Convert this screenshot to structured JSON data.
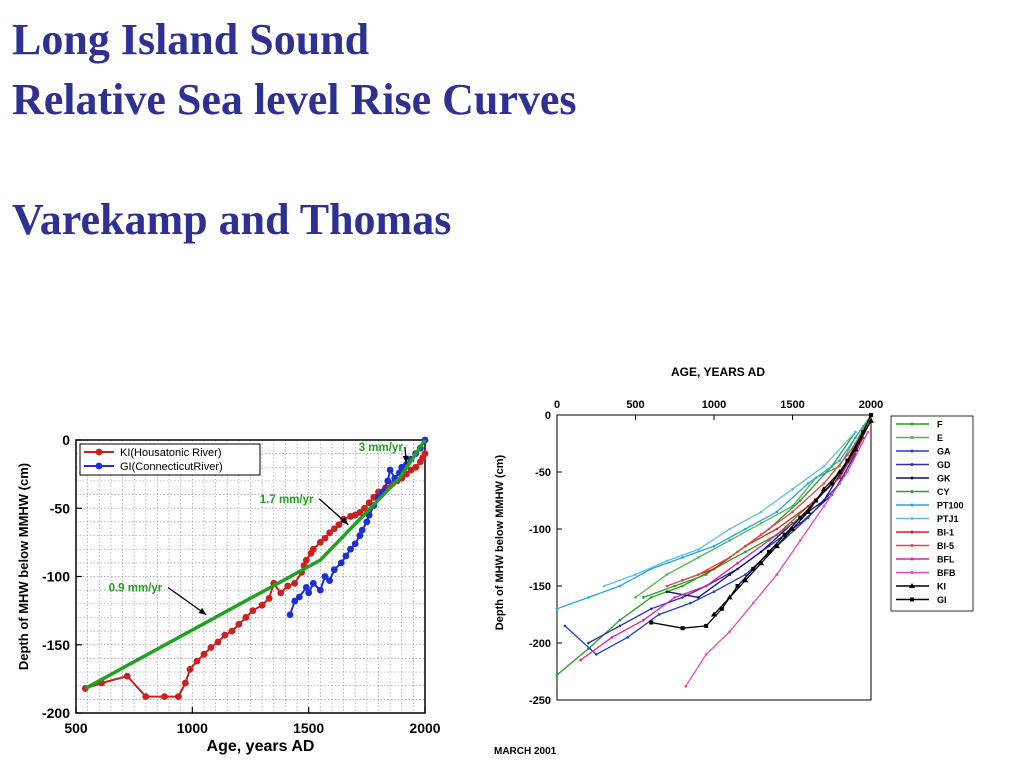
{
  "header": {
    "line1": "Long Island Sound",
    "line2": "Relative Sea level Rise Curves",
    "line3": "Varekamp and Thomas"
  },
  "footnote": "MARCH 2001",
  "chart_data": [
    {
      "type": "line",
      "xlabel": "Age, years AD",
      "ylabel": "Depth of MHW below MMHW (cm)",
      "xlim": [
        500,
        2000
      ],
      "ylim": [
        -200,
        0
      ],
      "xticks": [
        "500",
        "1000",
        "1500",
        "2000"
      ],
      "yticks": [
        "0",
        "-50",
        "-100",
        "-150",
        "-200"
      ],
      "grid": true,
      "legend_position": "top-left",
      "series": [
        {
          "name": "KI(Housatonic  River)",
          "color": "#cc1f1f",
          "marker": "circle",
          "points": [
            [
              540,
              -182
            ],
            [
              610,
              -178
            ],
            [
              720,
              -173
            ],
            [
              800,
              -188
            ],
            [
              880,
              -188
            ],
            [
              940,
              -188
            ],
            [
              970,
              -178
            ],
            [
              990,
              -168
            ],
            [
              1020,
              -162
            ],
            [
              1050,
              -157
            ],
            [
              1080,
              -152
            ],
            [
              1110,
              -148
            ],
            [
              1140,
              -143
            ],
            [
              1170,
              -140
            ],
            [
              1200,
              -135
            ],
            [
              1230,
              -130
            ],
            [
              1260,
              -125
            ],
            [
              1300,
              -121
            ],
            [
              1330,
              -116
            ],
            [
              1350,
              -105
            ],
            [
              1380,
              -112
            ],
            [
              1410,
              -107
            ],
            [
              1440,
              -105
            ],
            [
              1470,
              -97
            ],
            [
              1480,
              -92
            ],
            [
              1490,
              -88
            ],
            [
              1510,
              -83
            ],
            [
              1520,
              -80
            ],
            [
              1550,
              -75
            ],
            [
              1570,
              -72
            ],
            [
              1590,
              -68
            ],
            [
              1610,
              -65
            ],
            [
              1630,
              -62
            ],
            [
              1650,
              -58
            ],
            [
              1680,
              -56
            ],
            [
              1700,
              -55
            ],
            [
              1720,
              -53
            ],
            [
              1740,
              -50
            ],
            [
              1760,
              -46
            ],
            [
              1780,
              -42
            ],
            [
              1800,
              -38
            ],
            [
              1830,
              -35
            ],
            [
              1860,
              -32
            ],
            [
              1880,
              -30
            ],
            [
              1900,
              -28
            ],
            [
              1920,
              -25
            ],
            [
              1940,
              -22
            ],
            [
              1960,
              -20
            ],
            [
              1980,
              -16
            ],
            [
              1990,
              -13
            ],
            [
              2000,
              -10
            ]
          ]
        },
        {
          "name": "GI(ConnecticutRiver)",
          "color": "#1c2fd6",
          "marker": "circle",
          "points": [
            [
              1420,
              -128
            ],
            [
              1440,
              -118
            ],
            [
              1460,
              -115
            ],
            [
              1490,
              -108
            ],
            [
              1500,
              -112
            ],
            [
              1520,
              -105
            ],
            [
              1550,
              -110
            ],
            [
              1570,
              -100
            ],
            [
              1590,
              -103
            ],
            [
              1610,
              -95
            ],
            [
              1640,
              -90
            ],
            [
              1660,
              -85
            ],
            [
              1680,
              -80
            ],
            [
              1700,
              -76
            ],
            [
              1720,
              -70
            ],
            [
              1730,
              -66
            ],
            [
              1750,
              -60
            ],
            [
              1760,
              -55
            ],
            [
              1780,
              -48
            ],
            [
              1800,
              -42
            ],
            [
              1820,
              -38
            ],
            [
              1840,
              -30
            ],
            [
              1850,
              -22
            ],
            [
              1870,
              -28
            ],
            [
              1890,
              -24
            ],
            [
              1900,
              -20
            ],
            [
              1920,
              -18
            ],
            [
              1940,
              -14
            ],
            [
              1960,
              -10
            ],
            [
              1980,
              -6
            ],
            [
              2000,
              0
            ]
          ]
        }
      ],
      "trend_line": {
        "color": "#1fa21f",
        "points": [
          [
            540,
            -182
          ],
          [
            1550,
            -88
          ],
          [
            1890,
            -28
          ],
          [
            2000,
            0
          ]
        ]
      },
      "annotations": [
        {
          "text": "3 mm/yr",
          "x": 1715,
          "y": -8,
          "arrow_to": [
            1920,
            -17
          ]
        },
        {
          "text": "1.7 mm/yr",
          "x": 1290,
          "y": -46,
          "arrow_to": [
            1670,
            -62
          ]
        },
        {
          "text": "0.9 mm/yr",
          "x": 640,
          "y": -111,
          "arrow_to": [
            1060,
            -128
          ]
        }
      ]
    },
    {
      "type": "line",
      "xlabel": "AGE, YEARS AD",
      "ylabel": "Depth of MHW below MMHW (cm)",
      "xlim": [
        0,
        2000
      ],
      "ylim": [
        -250,
        0
      ],
      "xticks": [
        "0",
        "500",
        "1000",
        "1500",
        "2000"
      ],
      "yticks": [
        "0",
        "-50",
        "-100",
        "-150",
        "-200",
        "-250"
      ],
      "grid": false,
      "legend_position": "right",
      "series": [
        {
          "name": "F",
          "color": "#1fa21f",
          "marker": "dot",
          "points": [
            [
              0,
              -228
            ],
            [
              200,
              -205
            ],
            [
              400,
              -180
            ],
            [
              600,
              -160
            ],
            [
              800,
              -150
            ],
            [
              1000,
              -135
            ],
            [
              1200,
              -120
            ],
            [
              1400,
              -105
            ],
            [
              1600,
              -80
            ],
            [
              1800,
              -55
            ],
            [
              1900,
              -25
            ],
            [
              2000,
              0
            ]
          ]
        },
        {
          "name": "E",
          "color": "#4db84d",
          "marker": "dot",
          "points": [
            [
              500,
              -160
            ],
            [
              700,
              -140
            ],
            [
              900,
              -125
            ],
            [
              1100,
              -110
            ],
            [
              1300,
              -95
            ],
            [
              1500,
              -80
            ],
            [
              1650,
              -55
            ],
            [
              1800,
              -45
            ],
            [
              1900,
              -20
            ],
            [
              2000,
              0
            ]
          ]
        },
        {
          "name": "GA",
          "color": "#1f3fd0",
          "marker": "dot",
          "points": [
            [
              50,
              -185
            ],
            [
              250,
              -210
            ],
            [
              450,
              -195
            ],
            [
              650,
              -175
            ],
            [
              850,
              -165
            ],
            [
              1000,
              -155
            ],
            [
              1200,
              -140
            ],
            [
              1400,
              -115
            ],
            [
              1600,
              -90
            ],
            [
              1800,
              -60
            ],
            [
              1950,
              -20
            ]
          ]
        },
        {
          "name": "GD",
          "color": "#2c2cb0",
          "marker": "dot",
          "points": [
            [
              200,
              -200
            ],
            [
              400,
              -185
            ],
            [
              600,
              -170
            ],
            [
              800,
              -160
            ],
            [
              950,
              -150
            ],
            [
              1150,
              -135
            ],
            [
              1350,
              -115
            ],
            [
              1550,
              -95
            ],
            [
              1750,
              -70
            ],
            [
              1900,
              -35
            ]
          ]
        },
        {
          "name": "GK",
          "color": "#101070",
          "marker": "dot",
          "points": [
            [
              700,
              -155
            ],
            [
              900,
              -160
            ],
            [
              1100,
              -140
            ],
            [
              1300,
              -120
            ],
            [
              1500,
              -95
            ],
            [
              1700,
              -75
            ],
            [
              1900,
              -30
            ],
            [
              2000,
              -5
            ]
          ]
        },
        {
          "name": "CY",
          "color": "#2e9e2e",
          "marker": "dot",
          "points": [
            [
              550,
              -160
            ],
            [
              750,
              -150
            ],
            [
              950,
              -140
            ],
            [
              1150,
              -120
            ],
            [
              1350,
              -100
            ],
            [
              1550,
              -75
            ],
            [
              1750,
              -45
            ],
            [
              1900,
              -15
            ]
          ]
        },
        {
          "name": "PT100",
          "color": "#2aa4e0",
          "marker": "dot",
          "points": [
            [
              0,
              -170
            ],
            [
              200,
              -160
            ],
            [
              400,
              -150
            ],
            [
              600,
              -135
            ],
            [
              800,
              -125
            ],
            [
              1000,
              -115
            ],
            [
              1200,
              -100
            ],
            [
              1400,
              -85
            ],
            [
              1600,
              -60
            ],
            [
              1800,
              -40
            ],
            [
              1950,
              -10
            ]
          ]
        },
        {
          "name": "PTJ1",
          "color": "#58c0e8",
          "marker": "dot",
          "points": [
            [
              300,
              -150
            ],
            [
              500,
              -140
            ],
            [
              700,
              -128
            ],
            [
              900,
              -118
            ],
            [
              1100,
              -100
            ],
            [
              1300,
              -85
            ],
            [
              1500,
              -65
            ],
            [
              1700,
              -45
            ],
            [
              1900,
              -15
            ]
          ]
        },
        {
          "name": "BI-1",
          "color": "#d42020",
          "marker": "dot",
          "points": [
            [
              800,
              -145
            ],
            [
              1000,
              -135
            ],
            [
              1200,
              -115
            ],
            [
              1400,
              -100
            ],
            [
              1600,
              -80
            ],
            [
              1800,
              -55
            ],
            [
              1950,
              -20
            ]
          ]
        },
        {
          "name": "BI-5",
          "color": "#e04848",
          "marker": "dot",
          "points": [
            [
              700,
              -150
            ],
            [
              900,
              -140
            ],
            [
              1100,
              -125
            ],
            [
              1300,
              -105
            ],
            [
              1500,
              -85
            ],
            [
              1700,
              -60
            ],
            [
              1850,
              -35
            ],
            [
              2000,
              -5
            ]
          ]
        },
        {
          "name": "BFL",
          "color": "#e020a0",
          "marker": "dot",
          "points": [
            [
              150,
              -215
            ],
            [
              350,
              -195
            ],
            [
              550,
              -180
            ],
            [
              750,
              -160
            ],
            [
              950,
              -150
            ],
            [
              1150,
              -130
            ],
            [
              1350,
              -110
            ],
            [
              1550,
              -90
            ],
            [
              1750,
              -60
            ],
            [
              1900,
              -30
            ]
          ]
        },
        {
          "name": "BFB",
          "color": "#e848c0",
          "marker": "dot",
          "points": [
            [
              820,
              -238
            ],
            [
              950,
              -210
            ],
            [
              1100,
              -190
            ],
            [
              1250,
              -165
            ],
            [
              1400,
              -140
            ],
            [
              1550,
              -110
            ],
            [
              1700,
              -80
            ],
            [
              1850,
              -50
            ],
            [
              1980,
              -15
            ]
          ]
        },
        {
          "name": "KI",
          "color": "#000000",
          "marker": "triangle",
          "points": [
            [
              1000,
              -175
            ],
            [
              1100,
              -160
            ],
            [
              1200,
              -145
            ],
            [
              1300,
              -130
            ],
            [
              1400,
              -115
            ],
            [
              1500,
              -100
            ],
            [
              1600,
              -85
            ],
            [
              1700,
              -65
            ],
            [
              1800,
              -50
            ],
            [
              1900,
              -30
            ],
            [
              2000,
              -5
            ]
          ]
        },
        {
          "name": "GI",
          "color": "#000000",
          "marker": "square",
          "points": [
            [
              600,
              -182
            ],
            [
              800,
              -187
            ],
            [
              950,
              -185
            ],
            [
              1050,
              -170
            ],
            [
              1150,
              -150
            ],
            [
              1250,
              -135
            ],
            [
              1350,
              -120
            ],
            [
              1450,
              -105
            ],
            [
              1550,
              -90
            ],
            [
              1650,
              -75
            ],
            [
              1750,
              -60
            ],
            [
              1850,
              -40
            ],
            [
              1950,
              -15
            ],
            [
              2000,
              0
            ]
          ]
        }
      ]
    }
  ]
}
